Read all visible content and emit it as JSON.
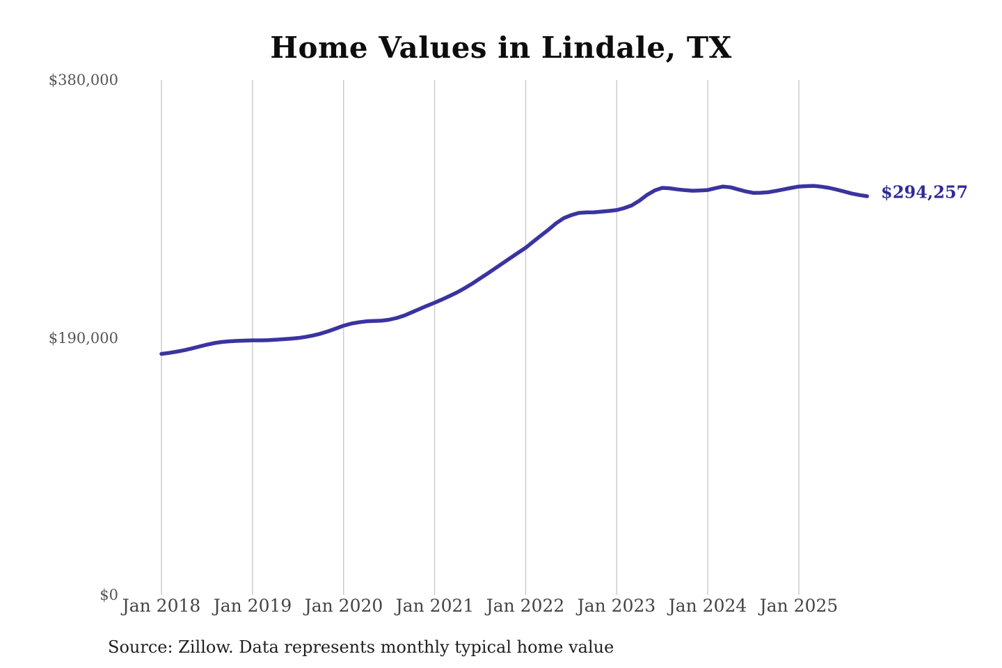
{
  "page": {
    "title": "Home Values in Lindale, TX",
    "source_note": "Source: Zillow. Data represents monthly typical home value",
    "end_value_label": "$294,257"
  },
  "colors": {
    "background": "#ffffff",
    "line": "#3a34a0",
    "end_label_text": "#302b96",
    "gridline": "#c9c9c9",
    "y_tick_text": "#555555",
    "x_tick_text": "#444444",
    "title_text": "#0d0d0d",
    "source_text": "#1f1f1f"
  },
  "chart_data": {
    "type": "line",
    "title": "Home Values in Lindale, TX",
    "xlabel": "",
    "ylabel": "",
    "x_tick_labels": [
      "Jan 2018",
      "Jan 2019",
      "Jan 2020",
      "Jan 2021",
      "Jan 2022",
      "Jan 2023",
      "Jan 2024",
      "Jan 2025"
    ],
    "y_tick_labels": [
      "$380,000",
      "$190,000",
      "$0"
    ],
    "y_tick_values": [
      380000,
      190000,
      0
    ],
    "ylim": [
      0,
      380000
    ],
    "grid": "vertical-only",
    "legend_position": "none",
    "frequency": "monthly",
    "x_start_month": "2018-01",
    "x_end_month": "2025-10",
    "series": [
      {
        "name": "Typical home value",
        "values": [
          177900,
          178600,
          179500,
          180600,
          181900,
          183300,
          184700,
          185900,
          186700,
          187200,
          187500,
          187700,
          187900,
          187900,
          188000,
          188300,
          188700,
          189100,
          189600,
          190400,
          191500,
          192900,
          194600,
          196600,
          198700,
          200200,
          201200,
          201900,
          202200,
          202400,
          203100,
          204400,
          206200,
          208600,
          211000,
          213400,
          215700,
          218100,
          220700,
          223400,
          226500,
          229900,
          233600,
          237300,
          241100,
          244900,
          248700,
          252500,
          256200,
          260700,
          265200,
          269500,
          274200,
          278000,
          280300,
          281900,
          282300,
          282400,
          282900,
          283400,
          284000,
          285500,
          287500,
          291000,
          295200,
          298500,
          300400,
          300100,
          299300,
          298700,
          298300,
          298500,
          298800,
          300200,
          301400,
          300800,
          299300,
          297800,
          296700,
          296800,
          297200,
          298200,
          299300,
          300400,
          301400,
          301700,
          301900,
          301300,
          300400,
          299100,
          297700,
          296200,
          295100,
          294257
        ]
      }
    ],
    "last_point": {
      "month": "2025-10",
      "value": 294257,
      "label": "$294,257"
    }
  }
}
